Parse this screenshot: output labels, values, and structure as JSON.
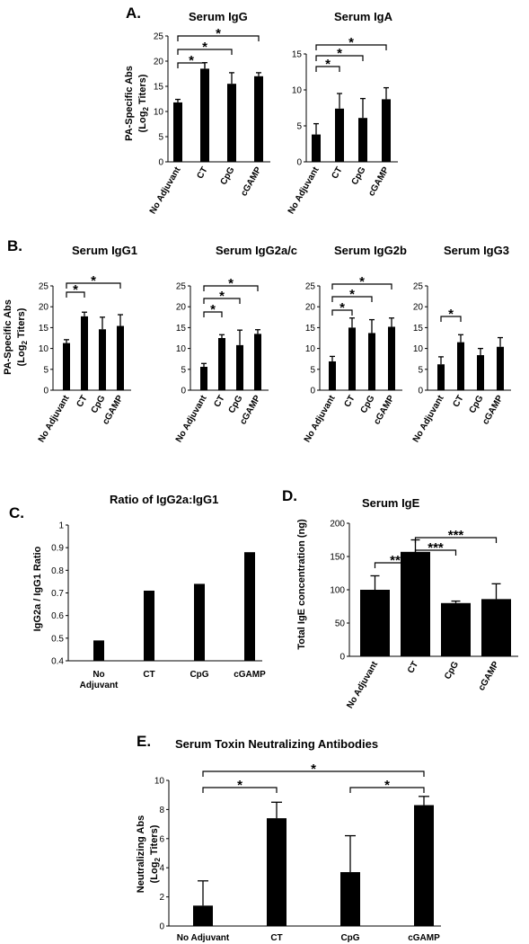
{
  "panels": [
    {
      "id": "A",
      "label": "A."
    },
    {
      "id": "B",
      "label": "B."
    },
    {
      "id": "C",
      "label": "C."
    },
    {
      "id": "D",
      "label": "D."
    },
    {
      "id": "E",
      "label": "E."
    }
  ],
  "shared": {
    "ylabel_A_line1": "PA-Specific Abs",
    "ylabel_A_line2": "(Log",
    "ylabel_A_sub": "2",
    "ylabel_A_line2b": " Titers)"
  },
  "chart_data": [
    {
      "id": "A1",
      "type": "bar",
      "title": "Serum IgG",
      "categories": [
        "No Adjuvant",
        "CT",
        "CpG",
        "cGAMP"
      ],
      "values": [
        11.8,
        18.5,
        15.5,
        17.0
      ],
      "errors": [
        0.6,
        1.2,
        2.2,
        0.7
      ],
      "ylim": [
        0,
        25
      ],
      "yticks": [
        0,
        5,
        10,
        15,
        20,
        25
      ],
      "ylabel": "PA-Specific Abs (Log2 Titers)",
      "significance": [
        {
          "from": 0,
          "to": 1,
          "label": "*"
        },
        {
          "from": 0,
          "to": 2,
          "label": "*"
        },
        {
          "from": 0,
          "to": 3,
          "label": "*"
        }
      ]
    },
    {
      "id": "A2",
      "type": "bar",
      "title": "Serum IgA",
      "categories": [
        "No Adjuvant",
        "CT",
        "CpG",
        "cGAMP"
      ],
      "values": [
        3.8,
        7.4,
        6.1,
        8.7
      ],
      "errors": [
        1.5,
        2.1,
        2.7,
        1.6
      ],
      "ylim": [
        0,
        15
      ],
      "yticks": [
        0,
        5,
        10,
        15
      ],
      "significance": [
        {
          "from": 0,
          "to": 1,
          "label": "*"
        },
        {
          "from": 0,
          "to": 2,
          "label": "*"
        },
        {
          "from": 0,
          "to": 3,
          "label": "*"
        }
      ]
    },
    {
      "id": "B1",
      "type": "bar",
      "title": "Serum IgG1",
      "categories": [
        "No Adjuvant",
        "CT",
        "CpG",
        "cGAMP"
      ],
      "values": [
        11.3,
        17.7,
        14.6,
        15.4
      ],
      "errors": [
        0.8,
        1.0,
        2.9,
        2.7
      ],
      "ylim": [
        0,
        25
      ],
      "yticks": [
        0,
        5,
        10,
        15,
        20,
        25
      ],
      "ylabel": "PA-Specific Abs (Log2 Titers)",
      "significance": [
        {
          "from": 0,
          "to": 1,
          "label": "*"
        },
        {
          "from": 0,
          "to": 3,
          "label": "*"
        }
      ]
    },
    {
      "id": "B2",
      "type": "bar",
      "title": "Serum IgG2a/c",
      "categories": [
        "No Adjuvant",
        "CT",
        "CpG",
        "cGAMP"
      ],
      "values": [
        5.6,
        12.5,
        10.8,
        13.5
      ],
      "errors": [
        0.8,
        0.8,
        3.6,
        1.0
      ],
      "ylim": [
        0,
        25
      ],
      "yticks": [
        0,
        5,
        10,
        15,
        20,
        25
      ],
      "significance": [
        {
          "from": 0,
          "to": 1,
          "label": "*"
        },
        {
          "from": 0,
          "to": 2,
          "label": "*"
        },
        {
          "from": 0,
          "to": 3,
          "label": "*"
        }
      ]
    },
    {
      "id": "B3",
      "type": "bar",
      "title": "Serum IgG2b",
      "categories": [
        "No Adjuvant",
        "CT",
        "CpG",
        "cGAMP"
      ],
      "values": [
        6.9,
        15.0,
        13.7,
        15.2
      ],
      "errors": [
        1.2,
        2.3,
        3.2,
        2.1
      ],
      "ylim": [
        0,
        25
      ],
      "yticks": [
        0,
        5,
        10,
        15,
        20,
        25
      ],
      "significance": [
        {
          "from": 0,
          "to": 1,
          "label": "*"
        },
        {
          "from": 0,
          "to": 2,
          "label": "*"
        },
        {
          "from": 0,
          "to": 3,
          "label": "*"
        }
      ]
    },
    {
      "id": "B4",
      "type": "bar",
      "title": "Serum IgG3",
      "categories": [
        "No Adjuvant",
        "CT",
        "CpG",
        "cGAMP"
      ],
      "values": [
        6.2,
        11.5,
        8.4,
        10.4
      ],
      "errors": [
        1.8,
        1.8,
        1.6,
        2.2
      ],
      "ylim": [
        0,
        25
      ],
      "yticks": [
        0,
        5,
        10,
        15,
        20,
        25
      ],
      "significance": [
        {
          "from": 0,
          "to": 1,
          "label": "*"
        }
      ]
    },
    {
      "id": "C",
      "type": "bar",
      "title": "Ratio of IgG2a:IgG1",
      "categories": [
        "No Adjuvant",
        "CT",
        "CpG",
        "cGAMP"
      ],
      "category_lines": [
        [
          "No",
          "Adjuvant"
        ],
        [
          "CT"
        ],
        [
          "CpG"
        ],
        [
          "cGAMP"
        ]
      ],
      "values": [
        0.49,
        0.71,
        0.74,
        0.88
      ],
      "ylim": [
        0.4,
        1.0
      ],
      "yticks": [
        0.4,
        0.5,
        0.6,
        0.7,
        0.8,
        0.9,
        1.0
      ],
      "ytick_labels": [
        "0.4",
        "0.5",
        "0.6",
        "0.7",
        "0.8",
        "0.9",
        "1"
      ],
      "ylabel": "IgG2a / IgG1 Ratio"
    },
    {
      "id": "D",
      "type": "bar",
      "title": "Serum IgE",
      "categories": [
        "No Adjuvant",
        "CT",
        "CpG",
        "cGAMP"
      ],
      "values": [
        100,
        157,
        80,
        86
      ],
      "errors": [
        21,
        18,
        3,
        23
      ],
      "ylim": [
        0,
        200
      ],
      "yticks": [
        0,
        50,
        100,
        150,
        200
      ],
      "ylabel": "Total IgE concentration (ng)",
      "significance": [
        {
          "from": 0,
          "to": 1,
          "label": "**"
        },
        {
          "from": 1,
          "to": 2,
          "label": "***"
        },
        {
          "from": 1,
          "to": 3,
          "label": "***"
        }
      ]
    },
    {
      "id": "E",
      "type": "bar",
      "title": "Serum Toxin Neutralizing Antibodies",
      "categories": [
        "No Adjuvant",
        "CT",
        "CpG",
        "cGAMP"
      ],
      "values": [
        1.4,
        7.4,
        3.7,
        8.3
      ],
      "errors": [
        1.7,
        1.1,
        2.5,
        0.6
      ],
      "ylim": [
        0,
        10
      ],
      "yticks": [
        0,
        2,
        4,
        6,
        8,
        10
      ],
      "ylabel": "Neutralizing Abs (Log2 Titers)",
      "ylabel_lines": [
        "Neutralizing Abs",
        "(Log",
        "2",
        " Titers)"
      ],
      "significance": [
        {
          "from": 0,
          "to": 1,
          "label": "*"
        },
        {
          "from": 0,
          "to": 3,
          "label": "*"
        },
        {
          "from": 2,
          "to": 3,
          "label": "*"
        }
      ]
    }
  ]
}
